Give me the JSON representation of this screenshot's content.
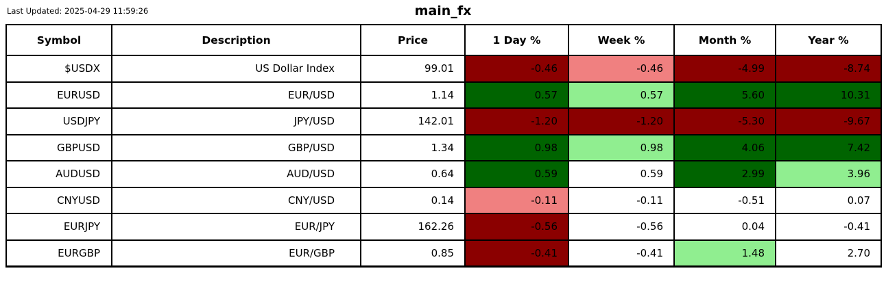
{
  "header": {
    "last_updated": "Last Updated: 2025-04-29 11:59:26",
    "title": "main_fx"
  },
  "colors": {
    "strong_negative": "#8b0000",
    "mild_negative": "#f08080",
    "strong_positive": "#006400",
    "mild_positive": "#90ee90",
    "neutral": "#ffffff"
  },
  "table": {
    "columns": [
      "Symbol",
      "Description",
      "Price",
      "1 Day %",
      "Week %",
      "Month %",
      "Year %"
    ],
    "rows": [
      {
        "symbol": "$USDX",
        "description": "US Dollar Index",
        "price": "99.01",
        "changes": [
          {
            "value": "-0.46",
            "tone": "strong_negative"
          },
          {
            "value": "-0.46",
            "tone": "mild_negative"
          },
          {
            "value": "-4.99",
            "tone": "strong_negative"
          },
          {
            "value": "-8.74",
            "tone": "strong_negative"
          }
        ]
      },
      {
        "symbol": "EURUSD",
        "description": "EUR/USD",
        "price": "1.14",
        "changes": [
          {
            "value": "0.57",
            "tone": "strong_positive"
          },
          {
            "value": "0.57",
            "tone": "mild_positive"
          },
          {
            "value": "5.60",
            "tone": "strong_positive"
          },
          {
            "value": "10.31",
            "tone": "strong_positive"
          }
        ]
      },
      {
        "symbol": "USDJPY",
        "description": "JPY/USD",
        "price": "142.01",
        "changes": [
          {
            "value": "-1.20",
            "tone": "strong_negative"
          },
          {
            "value": "-1.20",
            "tone": "strong_negative"
          },
          {
            "value": "-5.30",
            "tone": "strong_negative"
          },
          {
            "value": "-9.67",
            "tone": "strong_negative"
          }
        ]
      },
      {
        "symbol": "GBPUSD",
        "description": "GBP/USD",
        "price": "1.34",
        "changes": [
          {
            "value": "0.98",
            "tone": "strong_positive"
          },
          {
            "value": "0.98",
            "tone": "mild_positive"
          },
          {
            "value": "4.06",
            "tone": "strong_positive"
          },
          {
            "value": "7.42",
            "tone": "strong_positive"
          }
        ]
      },
      {
        "symbol": "AUDUSD",
        "description": "AUD/USD",
        "price": "0.64",
        "changes": [
          {
            "value": "0.59",
            "tone": "strong_positive"
          },
          {
            "value": "0.59",
            "tone": "neutral"
          },
          {
            "value": "2.99",
            "tone": "strong_positive"
          },
          {
            "value": "3.96",
            "tone": "mild_positive"
          }
        ]
      },
      {
        "symbol": "CNYUSD",
        "description": "CNY/USD",
        "price": "0.14",
        "changes": [
          {
            "value": "-0.11",
            "tone": "mild_negative"
          },
          {
            "value": "-0.11",
            "tone": "neutral"
          },
          {
            "value": "-0.51",
            "tone": "neutral"
          },
          {
            "value": "0.07",
            "tone": "neutral"
          }
        ]
      },
      {
        "symbol": "EURJPY",
        "description": "EUR/JPY",
        "price": "162.26",
        "changes": [
          {
            "value": "-0.56",
            "tone": "strong_negative"
          },
          {
            "value": "-0.56",
            "tone": "neutral"
          },
          {
            "value": "0.04",
            "tone": "neutral"
          },
          {
            "value": "-0.41",
            "tone": "neutral"
          }
        ]
      },
      {
        "symbol": "EURGBP",
        "description": "EUR/GBP",
        "price": "0.85",
        "changes": [
          {
            "value": "-0.41",
            "tone": "strong_negative"
          },
          {
            "value": "-0.41",
            "tone": "neutral"
          },
          {
            "value": "1.48",
            "tone": "mild_positive"
          },
          {
            "value": "2.70",
            "tone": "neutral"
          }
        ]
      }
    ]
  },
  "chart_data": {
    "type": "table",
    "title": "main_fx",
    "annotations": [
      "Last Updated: 2025-04-29 11:59:26"
    ],
    "columns": [
      "Symbol",
      "Description",
      "Price",
      "1 Day %",
      "Week %",
      "Month %",
      "Year %"
    ],
    "rows": [
      [
        "$USDX",
        "US Dollar Index",
        99.01,
        -0.46,
        -0.46,
        -4.99,
        -8.74
      ],
      [
        "EURUSD",
        "EUR/USD",
        1.14,
        0.57,
        0.57,
        5.6,
        10.31
      ],
      [
        "USDJPY",
        "JPY/USD",
        142.01,
        -1.2,
        -1.2,
        -5.3,
        -9.67
      ],
      [
        "GBPUSD",
        "GBP/USD",
        1.34,
        0.98,
        0.98,
        4.06,
        7.42
      ],
      [
        "AUDUSD",
        "AUD/USD",
        0.64,
        0.59,
        0.59,
        2.99,
        3.96
      ],
      [
        "CNYUSD",
        "CNY/USD",
        0.14,
        -0.11,
        -0.11,
        -0.51,
        0.07
      ],
      [
        "EURJPY",
        "EUR/JPY",
        162.26,
        -0.56,
        -0.56,
        0.04,
        -0.41
      ],
      [
        "EURGBP",
        "EUR/GBP",
        0.85,
        -0.41,
        -0.41,
        1.48,
        2.7
      ]
    ],
    "cell_color_legend": {
      "#8b0000": "strong negative change",
      "#f08080": "mild negative change",
      "#006400": "strong positive change",
      "#90ee90": "mild positive change",
      "#ffffff": "neutral / small change"
    }
  }
}
